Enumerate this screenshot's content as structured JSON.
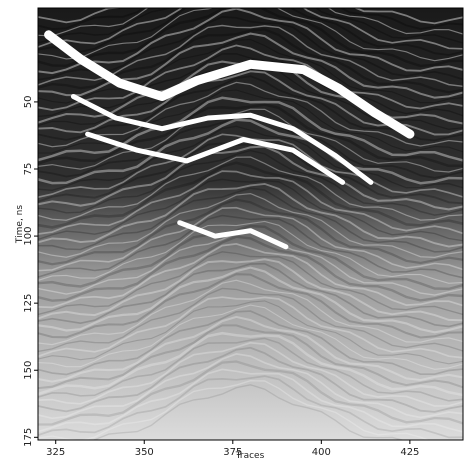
{
  "chart_data": {
    "type": "heatmap",
    "title": "",
    "xlabel": "Traces",
    "ylabel": "Time, ns",
    "xlim": [
      320,
      440
    ],
    "ylim": [
      176,
      15
    ],
    "x_ticks": [
      "325",
      "350",
      "375",
      "400",
      "425"
    ],
    "y_ticks": [
      "50",
      "75",
      "100",
      "125",
      "150",
      "175"
    ],
    "colormap": [
      "#000000",
      "#ffffff"
    ],
    "grid": false,
    "reflectors": [
      {
        "x": [
          323,
          332,
          343,
          355,
          365,
          380,
          395,
          405,
          415,
          425
        ],
        "y": [
          25,
          34,
          43,
          48,
          42,
          36,
          38,
          45,
          54,
          62
        ]
      },
      {
        "x": [
          330,
          342,
          355,
          368,
          380,
          392,
          404,
          414
        ],
        "y": [
          48,
          56,
          60,
          56,
          55,
          60,
          70,
          80
        ]
      },
      {
        "x": [
          334,
          348,
          362,
          378,
          392,
          406
        ],
        "y": [
          62,
          68,
          72,
          64,
          68,
          80
        ]
      },
      {
        "x": [
          360,
          370,
          380,
          390
        ],
        "y": [
          95,
          100,
          98,
          104
        ]
      }
    ]
  }
}
